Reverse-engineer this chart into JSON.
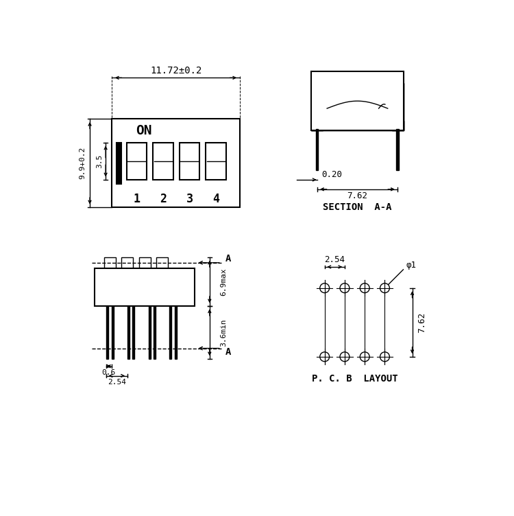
{
  "bg_color": "#ffffff",
  "line_color": "#000000",
  "dim_11_72": "11.72±0.2",
  "dim_9_9": "9.9+0.2",
  "dim_3_5": "3.5",
  "dim_0_20": "0.20",
  "dim_7_62_section": "7.62",
  "dim_6_9max": "6.9max",
  "dim_3_6min": "3.6min",
  "dim_0_6": "0.6",
  "dim_2_54_bottom": "2.54",
  "dim_2_54_pcb": "2.54",
  "dim_7_62_pcb": "7.62",
  "dim_phi1": "φ1",
  "label_section": "SECTION  A-A",
  "label_pcb": "P. C. B  LAYOUT",
  "switch_numbers": [
    "1",
    "2",
    "3",
    "4"
  ],
  "label_ON": "ON",
  "label_A": "A"
}
